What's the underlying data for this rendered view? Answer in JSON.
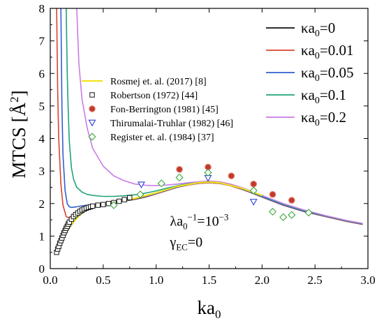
{
  "chart_data": {
    "type": "line",
    "title": "",
    "xlabel": "ka",
    "xlabel_sub": "0",
    "ylabel": "MTCS [Å",
    "ylabel_sup": "2",
    "ylabel_close": "]",
    "xlim": [
      0.0,
      3.0
    ],
    "ylim": [
      0,
      8
    ],
    "xticks": [
      0.0,
      0.5,
      1.0,
      1.5,
      2.0,
      2.5,
      3.0
    ],
    "xtick_labels": [
      "0.0",
      "0.5",
      "1.0",
      "1.5",
      "2.0",
      "2.5",
      "3.0"
    ],
    "yticks": [
      0,
      1,
      2,
      3,
      4,
      5,
      6,
      7,
      8
    ],
    "ytick_labels": [
      "0",
      "1",
      "2",
      "3",
      "4",
      "5",
      "6",
      "7",
      "8"
    ],
    "grid": false,
    "legend_lines_position": "top-right",
    "legend_markers_position": "center-left",
    "annotations": [
      {
        "kind": "lambda",
        "prefix": "λa",
        "sub": "0",
        "sup": "−1",
        "suffix": "=10",
        "sup2": "−3",
        "x": 1.13,
        "y": 1.32
      },
      {
        "kind": "gamma",
        "prefix": "γ",
        "sub": "EC",
        "suffix": "=0",
        "x": 1.13,
        "y": 0.68
      }
    ],
    "series": [
      {
        "name_prefix": "κa",
        "name_sub": "0",
        "name_suffix": "=0",
        "color": "#111111",
        "x": [
          0.05,
          0.1,
          0.15,
          0.2,
          0.25,
          0.3,
          0.35,
          0.4,
          0.5,
          0.6,
          0.7,
          0.8,
          0.9,
          1.0,
          1.1,
          1.2,
          1.3,
          1.4,
          1.5,
          1.6,
          1.7,
          1.8,
          1.9,
          2.0,
          2.2,
          2.4,
          2.6,
          2.8,
          2.95
        ],
        "y": [
          0.45,
          0.8,
          1.1,
          1.35,
          1.55,
          1.7,
          1.8,
          1.88,
          1.97,
          2.03,
          2.08,
          2.13,
          2.2,
          2.3,
          2.4,
          2.5,
          2.57,
          2.62,
          2.64,
          2.62,
          2.55,
          2.45,
          2.33,
          2.2,
          1.95,
          1.75,
          1.6,
          1.45,
          1.36
        ]
      },
      {
        "name_prefix": "κa",
        "name_sub": "0",
        "name_suffix": "=0.01",
        "color": "#d9452a",
        "x": [
          0.06,
          0.07,
          0.08,
          0.1,
          0.12,
          0.15,
          0.18,
          0.2,
          0.25,
          0.3,
          0.35,
          0.4,
          0.5,
          0.6,
          0.7,
          0.8,
          0.9,
          1.0,
          1.1,
          1.2,
          1.3,
          1.4,
          1.5,
          1.6,
          1.7,
          1.8,
          1.9,
          2.0,
          2.2,
          2.4,
          2.6,
          2.8,
          2.95
        ],
        "y": [
          8.0,
          5.5,
          4.0,
          2.6,
          1.95,
          1.6,
          1.55,
          1.62,
          1.75,
          1.85,
          1.9,
          1.94,
          1.99,
          2.04,
          2.09,
          2.14,
          2.21,
          2.3,
          2.4,
          2.5,
          2.57,
          2.62,
          2.64,
          2.62,
          2.55,
          2.45,
          2.33,
          2.2,
          1.95,
          1.75,
          1.6,
          1.45,
          1.36
        ]
      },
      {
        "name_prefix": "κa",
        "name_sub": "0",
        "name_suffix": "=0.05",
        "color": "#2f5fd0",
        "x": [
          0.1,
          0.11,
          0.12,
          0.14,
          0.16,
          0.18,
          0.2,
          0.25,
          0.3,
          0.35,
          0.4,
          0.5,
          0.6,
          0.7,
          0.8,
          0.9,
          1.0,
          1.1,
          1.2,
          1.3,
          1.4,
          1.5,
          1.6,
          1.7,
          1.8,
          1.9,
          2.0,
          2.2,
          2.4,
          2.6,
          2.8,
          2.95
        ],
        "y": [
          8.0,
          5.0,
          3.5,
          2.4,
          2.0,
          1.9,
          1.88,
          1.9,
          1.93,
          1.95,
          1.97,
          2.01,
          2.05,
          2.1,
          2.15,
          2.22,
          2.31,
          2.41,
          2.51,
          2.58,
          2.63,
          2.65,
          2.63,
          2.56,
          2.46,
          2.34,
          2.21,
          1.96,
          1.76,
          1.61,
          1.46,
          1.37
        ]
      },
      {
        "name_prefix": "κa",
        "name_sub": "0",
        "name_suffix": "=0.1",
        "color": "#1fa37a",
        "x": [
          0.15,
          0.16,
          0.17,
          0.18,
          0.2,
          0.22,
          0.25,
          0.3,
          0.35,
          0.4,
          0.5,
          0.6,
          0.7,
          0.8,
          0.9,
          1.0,
          1.1,
          1.2,
          1.3,
          1.4,
          1.5,
          1.6,
          1.7,
          1.8,
          1.9,
          2.0,
          2.2,
          2.4,
          2.6,
          2.8,
          2.95
        ],
        "y": [
          8.0,
          6.0,
          4.8,
          3.9,
          3.1,
          2.75,
          2.5,
          2.35,
          2.28,
          2.25,
          2.22,
          2.22,
          2.24,
          2.27,
          2.32,
          2.39,
          2.47,
          2.55,
          2.61,
          2.65,
          2.67,
          2.65,
          2.58,
          2.48,
          2.36,
          2.23,
          1.98,
          1.78,
          1.62,
          1.47,
          1.38
        ]
      },
      {
        "name_prefix": "κa",
        "name_sub": "0",
        "name_suffix": "=0.2",
        "color": "#c77ce6",
        "x": [
          0.25,
          0.27,
          0.3,
          0.35,
          0.4,
          0.5,
          0.6,
          0.7,
          0.8,
          0.9,
          1.0,
          1.1,
          1.2,
          1.3,
          1.4,
          1.5,
          1.6,
          1.7,
          1.8,
          1.9,
          2.0,
          2.2,
          2.4,
          2.6,
          2.8,
          2.95
        ],
        "y": [
          8.0,
          6.3,
          5.2,
          4.3,
          3.7,
          3.15,
          2.85,
          2.7,
          2.6,
          2.56,
          2.55,
          2.57,
          2.6,
          2.64,
          2.67,
          2.69,
          2.67,
          2.6,
          2.5,
          2.38,
          2.25,
          2.0,
          1.8,
          1.63,
          1.48,
          1.39
        ]
      },
      {
        "name": "Rosmej et. al. (2017) [8]",
        "color": "#f2e21a",
        "style": "line",
        "x": [
          0.05,
          0.1,
          0.15,
          0.2,
          0.3,
          0.4,
          0.5,
          0.6,
          0.8,
          1.0,
          1.2,
          1.4,
          1.5,
          1.6,
          1.8,
          2.0
        ],
        "y": [
          0.45,
          0.8,
          1.12,
          1.37,
          1.72,
          1.9,
          2.0,
          2.05,
          2.16,
          2.33,
          2.53,
          2.64,
          2.66,
          2.64,
          2.48,
          2.25
        ]
      }
    ],
    "scatter_series": [
      {
        "name": "Robertson (1972) [44]",
        "marker": "square-open",
        "color": "#111111",
        "x": [
          0.06,
          0.07,
          0.08,
          0.09,
          0.1,
          0.11,
          0.12,
          0.13,
          0.14,
          0.15,
          0.16,
          0.17,
          0.18,
          0.2,
          0.22,
          0.24,
          0.26,
          0.28,
          0.3,
          0.32,
          0.34,
          0.36,
          0.38,
          0.4,
          0.45,
          0.5,
          0.55,
          0.6,
          0.65,
          0.7,
          0.75
        ],
        "y": [
          0.5,
          0.6,
          0.68,
          0.78,
          0.86,
          0.94,
          1.02,
          1.1,
          1.17,
          1.24,
          1.3,
          1.37,
          1.43,
          1.52,
          1.6,
          1.66,
          1.71,
          1.76,
          1.8,
          1.83,
          1.86,
          1.88,
          1.9,
          1.92,
          1.95,
          1.97,
          2.0,
          2.03,
          2.07,
          2.12,
          2.18
        ]
      },
      {
        "name": "Fon-Berrington (1981) [45]",
        "marker": "circle-filled",
        "color": "#c0392b",
        "x": [
          1.22,
          1.49,
          1.71,
          1.92,
          2.1,
          2.28
        ],
        "y": [
          3.05,
          3.12,
          2.85,
          2.6,
          2.28,
          2.1
        ]
      },
      {
        "name": "Thirumalai-Truhlar (1982) [46]",
        "marker": "triangle-down-open",
        "color": "#2b3fd9",
        "x": [
          0.86,
          1.49,
          1.92
        ],
        "y": [
          2.58,
          2.78,
          2.05
        ]
      },
      {
        "name": "Register et. al. (1984) [37]",
        "marker": "diamond-open",
        "color": "#3aa83a",
        "x": [
          0.6,
          0.85,
          1.05,
          1.22,
          1.49,
          1.92,
          2.1,
          2.2,
          2.28,
          2.44
        ],
        "y": [
          1.95,
          2.28,
          2.62,
          2.8,
          2.95,
          2.4,
          1.75,
          1.58,
          1.65,
          1.72
        ]
      }
    ]
  }
}
